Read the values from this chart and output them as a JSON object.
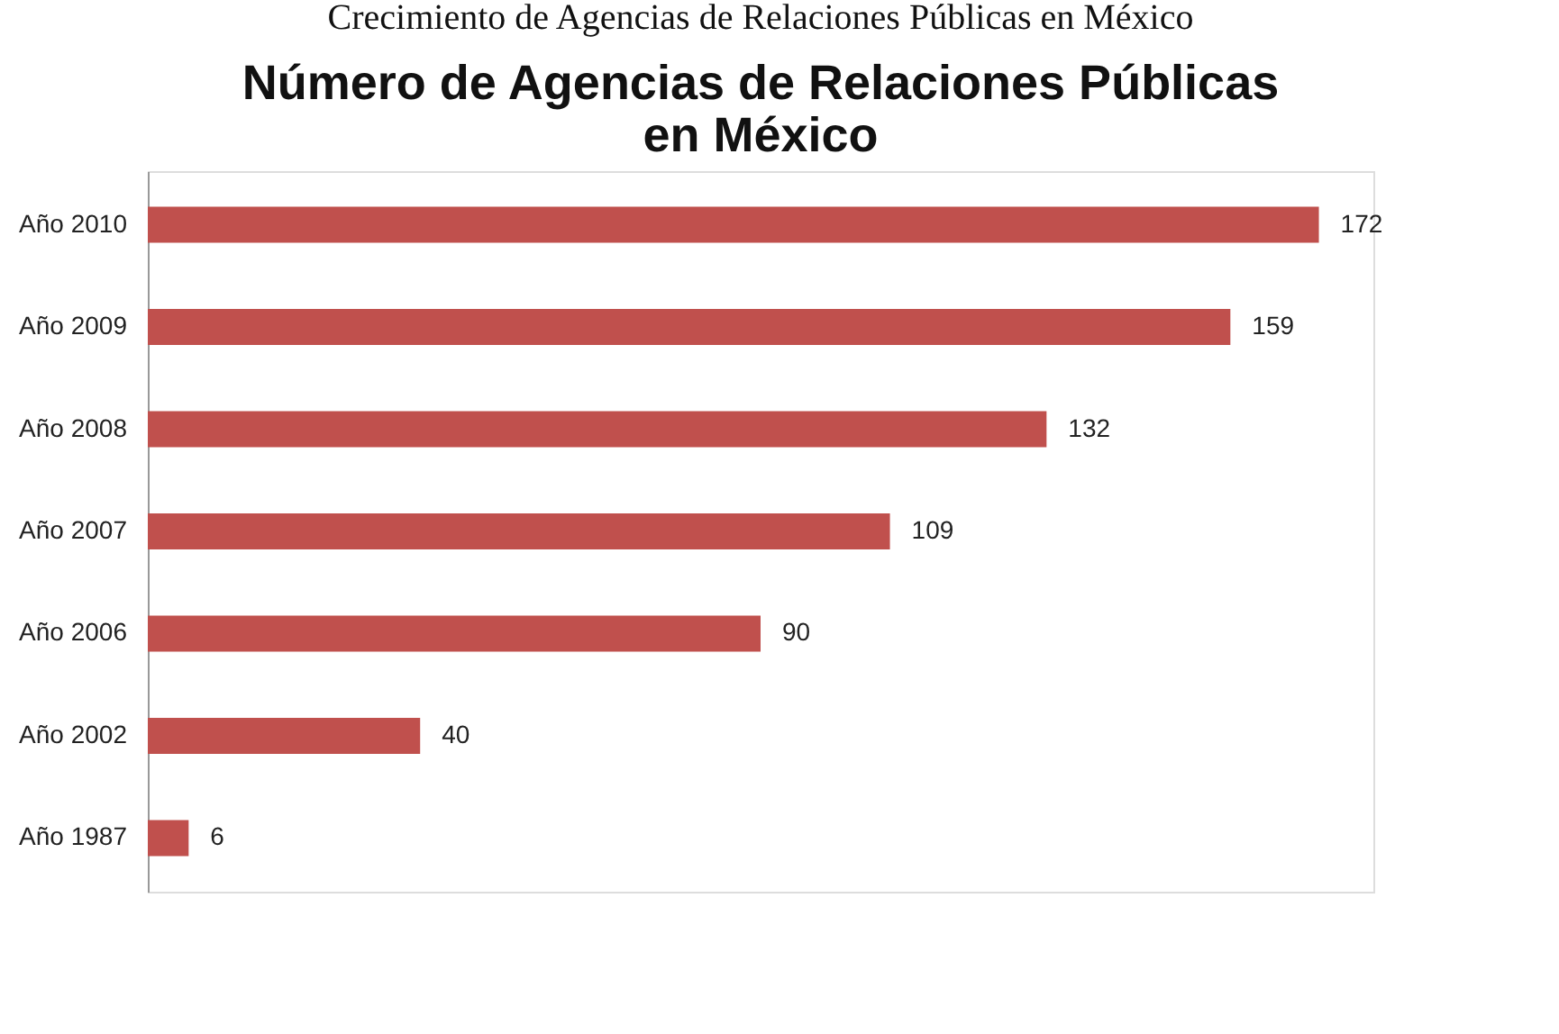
{
  "chart_data": {
    "type": "bar",
    "orientation": "horizontal",
    "title": "Crecimiento de Agencias de Relaciones Públicas en México",
    "subtitle": "Número de Agencias de Relaciones Públicas en México",
    "categories": [
      "Año 2010",
      "Año 2009",
      "Año 2008",
      "Año 2007",
      "Año 2006",
      "Año 2002",
      "Año 1987"
    ],
    "values": [
      172,
      159,
      132,
      109,
      90,
      40,
      6
    ],
    "color": "#c0504d",
    "data_labels": true,
    "grid": false,
    "tick_labels": "y"
  }
}
